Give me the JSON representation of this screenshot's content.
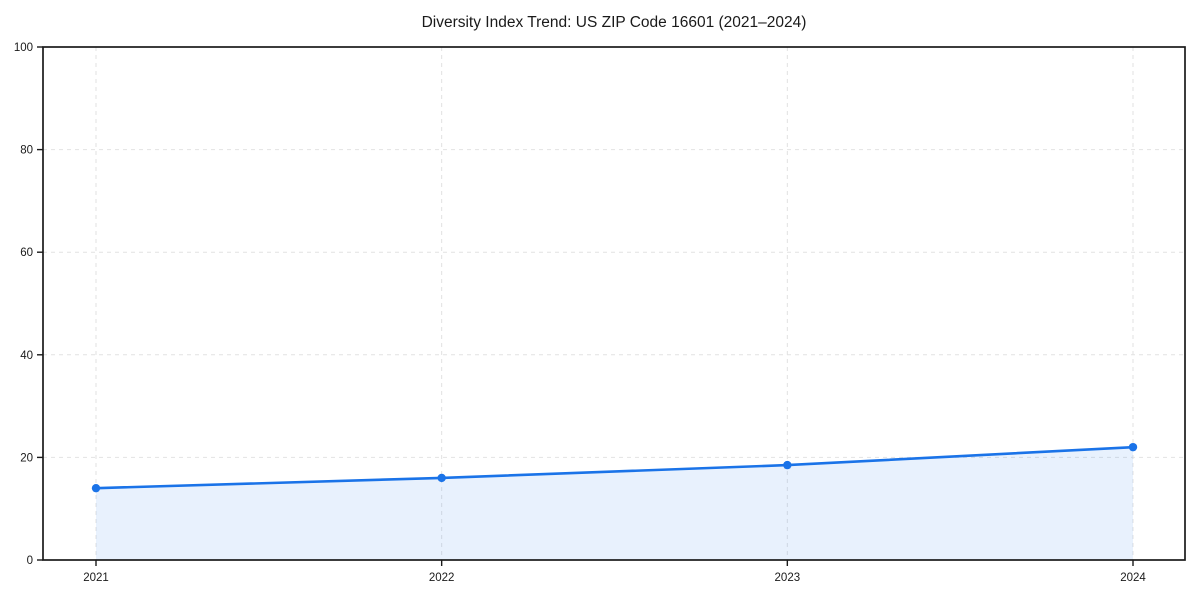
{
  "chart_data": {
    "type": "line",
    "title": "Diversity Index Trend: US ZIP Code 16601 (2021–2024)",
    "xlabel": "",
    "ylabel": "",
    "categories": [
      "2021",
      "2022",
      "2023",
      "2024"
    ],
    "series": [
      {
        "name": "Diversity Index",
        "values": [
          14,
          16,
          18.5,
          22
        ]
      }
    ],
    "ylim": [
      0,
      100
    ],
    "yticks": [
      0,
      20,
      40,
      60,
      80,
      100
    ],
    "grid": true,
    "grid_style": "dashed",
    "legend": false,
    "area_fill": true,
    "colors": {
      "line": "#1a73e8",
      "marker": "#1a73e8",
      "area": "rgba(26,115,232,0.10)",
      "grid": "#e2e2e2",
      "axis": "#1a1a1a",
      "text": "#1a1a1a",
      "background": "#ffffff"
    }
  }
}
